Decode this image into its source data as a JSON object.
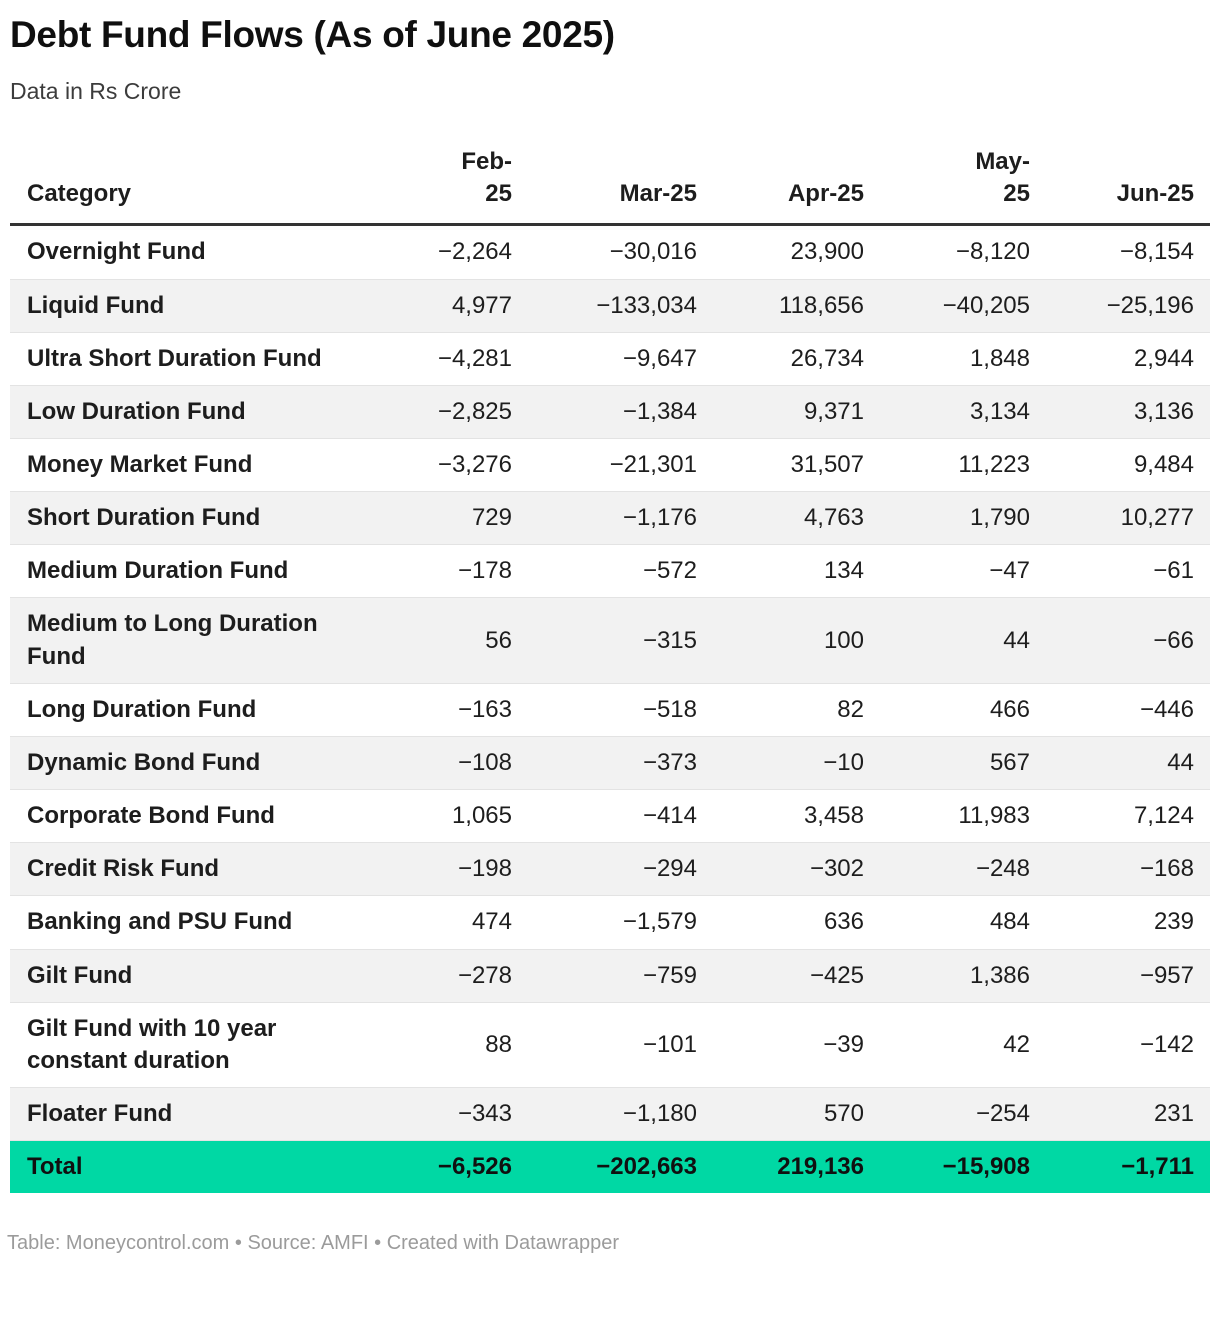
{
  "header": {
    "title": "Debt Fund Flows (As of June 2025)",
    "subtitle": "Data in Rs Crore"
  },
  "chart_data": {
    "type": "table",
    "title": "Debt Fund Flows (As of June 2025)",
    "subtitle": "Data in Rs Crore",
    "unit": "Rs Crore",
    "category_header": "Category",
    "columns": [
      "Feb-\n25",
      "Mar-25",
      "Apr-25",
      "May-\n25",
      "Jun-25"
    ],
    "rows": [
      {
        "category": "Overnight Fund",
        "values": [
          "−2,264",
          "−30,016",
          "23,900",
          "−8,120",
          "−8,154"
        ]
      },
      {
        "category": "Liquid Fund",
        "values": [
          "4,977",
          "−133,034",
          "118,656",
          "−40,205",
          "−25,196"
        ]
      },
      {
        "category": "Ultra Short Duration Fund",
        "values": [
          "−4,281",
          "−9,647",
          "26,734",
          "1,848",
          "2,944"
        ]
      },
      {
        "category": "Low Duration Fund",
        "values": [
          "−2,825",
          "−1,384",
          "9,371",
          "3,134",
          "3,136"
        ]
      },
      {
        "category": "Money Market Fund",
        "values": [
          "−3,276",
          "−21,301",
          "31,507",
          "11,223",
          "9,484"
        ]
      },
      {
        "category": "Short Duration Fund",
        "values": [
          "729",
          "−1,176",
          "4,763",
          "1,790",
          "10,277"
        ]
      },
      {
        "category": "Medium Duration Fund",
        "values": [
          "−178",
          "−572",
          "134",
          "−47",
          "−61"
        ]
      },
      {
        "category": "Medium to Long Duration Fund",
        "values": [
          "56",
          "−315",
          "100",
          "44",
          "−66"
        ]
      },
      {
        "category": "Long Duration Fund",
        "values": [
          "−163",
          "−518",
          "82",
          "466",
          "−446"
        ]
      },
      {
        "category": "Dynamic Bond Fund",
        "values": [
          "−108",
          "−373",
          "−10",
          "567",
          "44"
        ]
      },
      {
        "category": "Corporate Bond Fund",
        "values": [
          "1,065",
          "−414",
          "3,458",
          "11,983",
          "7,124"
        ]
      },
      {
        "category": "Credit Risk Fund",
        "values": [
          "−198",
          "−294",
          "−302",
          "−248",
          "−168"
        ]
      },
      {
        "category": "Banking and PSU Fund",
        "values": [
          "474",
          "−1,579",
          "636",
          "484",
          "239"
        ]
      },
      {
        "category": "Gilt Fund",
        "values": [
          "−278",
          "−759",
          "−425",
          "1,386",
          "−957"
        ]
      },
      {
        "category": "Gilt Fund with 10 year constant duration",
        "values": [
          "88",
          "−101",
          "−39",
          "42",
          "−142"
        ]
      },
      {
        "category": "Floater Fund",
        "values": [
          "−343",
          "−1,180",
          "570",
          "−254",
          "231"
        ]
      }
    ],
    "total": {
      "label": "Total",
      "values": [
        "−6,526",
        "−202,663",
        "219,136",
        "−15,908",
        "−1,711"
      ]
    }
  },
  "footer": {
    "credit": "Table: Moneycontrol.com • Source: AMFI • Created with Datawrapper"
  },
  "colors": {
    "total_row_green": "#00d8a4",
    "stripe_gray": "#f2f2f2",
    "header_rule": "#333333",
    "text": "#1d1d1d",
    "credit_gray": "#9b9b9b"
  }
}
